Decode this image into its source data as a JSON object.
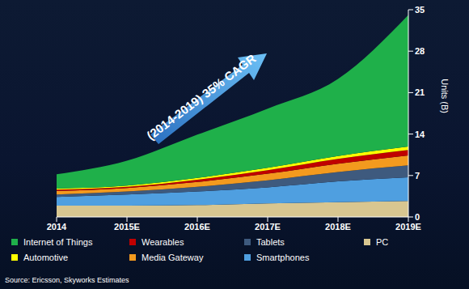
{
  "chart_data": {
    "type": "area",
    "stacked": true,
    "annotation": "(2014-2019) 35% CAGR",
    "source": "Source: Ericsson, Skyworks Estimates",
    "y_label": "Units (B)",
    "categories": [
      "2014",
      "2015E",
      "2016E",
      "2017E",
      "2018E",
      "2019E"
    ],
    "ylim": [
      0,
      35
    ],
    "yticks": [
      0,
      7,
      14,
      21,
      28,
      35
    ],
    "grid": false,
    "legend": "bottom",
    "series": [
      {
        "name": "PC",
        "color": "#d8c690",
        "values": [
          1.9,
          1.9,
          2.0,
          2.3,
          2.5,
          2.7
        ]
      },
      {
        "name": "Smartphones",
        "color": "#4f9fe0",
        "values": [
          1.5,
          1.9,
          2.3,
          2.7,
          3.5,
          4.0
        ]
      },
      {
        "name": "Tablets",
        "color": "#3e5a7e",
        "values": [
          0.4,
          0.5,
          0.8,
          1.2,
          1.6,
          2.0
        ]
      },
      {
        "name": "Media Gateway",
        "color": "#f39a1e",
        "values": [
          0.6,
          0.6,
          0.8,
          1.1,
          1.4,
          1.7
        ]
      },
      {
        "name": "Wearables",
        "color": "#c00000",
        "values": [
          0.2,
          0.2,
          0.4,
          0.6,
          0.8,
          0.9
        ]
      },
      {
        "name": "Automotive",
        "color": "#ffff00",
        "values": [
          0.2,
          0.2,
          0.3,
          0.4,
          0.5,
          0.6
        ]
      },
      {
        "name": "Internet of Things",
        "color": "#1fb04a",
        "values": [
          2.4,
          4.2,
          7.3,
          10.0,
          13.0,
          22.2
        ]
      }
    ]
  }
}
